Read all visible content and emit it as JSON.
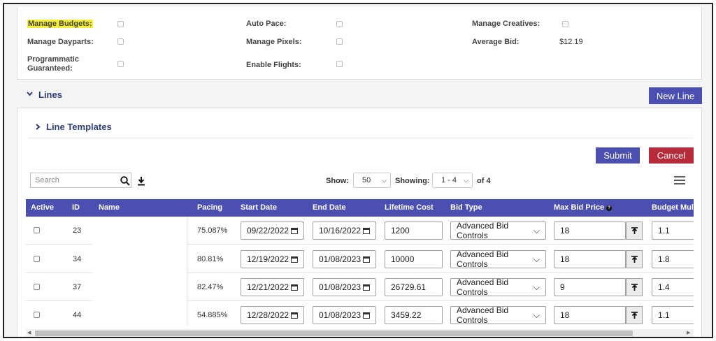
{
  "settings": {
    "manage_budgets": "Manage Budgets:",
    "manage_dayparts": "Manage Dayparts:",
    "programmatic_guaranteed_line1": "Programmatic",
    "programmatic_guaranteed_line2": "Guaranteed:",
    "auto_pace": "Auto Pace:",
    "manage_pixels": "Manage Pixels:",
    "enable_flights": "Enable Flights:",
    "manage_creatives": "Manage Creatives:",
    "average_bid": "Average Bid:",
    "average_bid_value": "$12.19"
  },
  "lines": {
    "title": "Lines",
    "new_line_label": "New Line",
    "templates_title": "Line Templates",
    "submit_label": "Submit",
    "cancel_label": "Cancel",
    "search_placeholder": "Search",
    "show_label": "Show:",
    "show_value": "50",
    "showing_label": "Showing:",
    "showing_value": "1 - 4",
    "of_label": "of 4"
  },
  "table": {
    "headers": {
      "active": "Active",
      "id": "ID",
      "name": "Name",
      "pacing": "Pacing",
      "start_date": "Start Date",
      "end_date": "End Date",
      "lifetime_cost": "Lifetime Cost",
      "bid_type": "Bid Type",
      "max_bid_price": "Max Bid Price",
      "budget_mult": "Budget Mult"
    },
    "rows": [
      {
        "id": "23",
        "pacing": "75.087%",
        "start": "09/22/2022",
        "end": "10/16/2022",
        "cost": "1200",
        "bid_type": "Advanced Bid Controls",
        "max_bid": "18",
        "budget_mult": "1.1"
      },
      {
        "id": "34",
        "pacing": "80.81%",
        "start": "12/19/2022",
        "end": "01/08/2023",
        "cost": "10000",
        "bid_type": "Advanced Bid Controls",
        "max_bid": "18",
        "budget_mult": "1.8"
      },
      {
        "id": "37",
        "pacing": "82.47%",
        "start": "12/21/2022",
        "end": "01/08/2023",
        "cost": "26729.61",
        "bid_type": "Advanced Bid Controls",
        "max_bid": "9",
        "budget_mult": "1.4"
      },
      {
        "id": "44",
        "pacing": "54.885%",
        "start": "12/28/2022",
        "end": "01/08/2023",
        "cost": "3459.22",
        "bid_type": "Advanced Bid Controls",
        "max_bid": "18",
        "budget_mult": "1.1"
      }
    ]
  },
  "colors": {
    "accent": "#4a4fb0",
    "danger": "#b72a3a",
    "heading": "#2f3f7a",
    "highlight": "#f5ef3a"
  },
  "icons": [
    "chevron-down-icon",
    "chevron-right-icon",
    "search-icon",
    "download-icon",
    "menu-icon",
    "calendar-icon",
    "upload-icon",
    "info-icon"
  ]
}
